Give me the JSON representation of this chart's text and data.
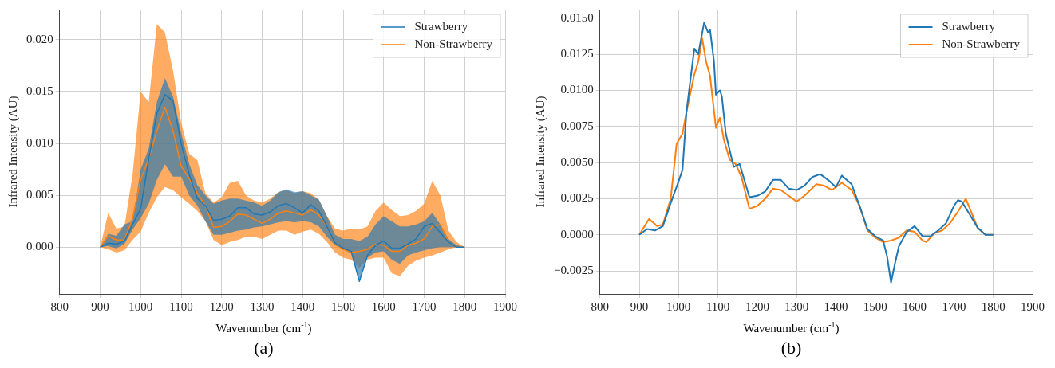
{
  "chart_data": [
    {
      "type": "line",
      "xlabel": "Wavenumber (cm$^{-1}$)",
      "ylabel": "Infrared Intensity (AU)",
      "annotations": [
        "(a)"
      ],
      "legend": "top right",
      "grid": true,
      "xlim": [
        800,
        1900
      ],
      "xticks": [
        800,
        900,
        1000,
        1100,
        1200,
        1300,
        1400,
        1500,
        1600,
        1700,
        1800,
        1900
      ],
      "ylim": [
        -0.0045,
        0.0229
      ],
      "yticks": [
        {
          "value": 0,
          "label": "0.000"
        },
        {
          "value": 0.005,
          "label": "0.005"
        },
        {
          "value": 0.01,
          "label": "0.010"
        },
        {
          "value": 0.015,
          "label": "0.015"
        },
        {
          "value": 0.02,
          "label": "0.020"
        }
      ],
      "x": [
        900,
        920,
        940,
        960,
        980,
        1000,
        1020,
        1040,
        1060,
        1080,
        1100,
        1120,
        1140,
        1160,
        1180,
        1200,
        1220,
        1240,
        1260,
        1280,
        1300,
        1320,
        1340,
        1360,
        1380,
        1400,
        1420,
        1440,
        1460,
        1480,
        1500,
        1520,
        1540,
        1560,
        1580,
        1600,
        1620,
        1640,
        1660,
        1680,
        1700,
        1720,
        1740,
        1760,
        1780,
        1800
      ],
      "series": [
        {
          "name": "Strawberry",
          "color": "#1f77b4",
          "values": [
            0,
            0.0004,
            0.0003,
            0.0006,
            0.0022,
            0.0037,
            0.0085,
            0.0129,
            0.0147,
            0.0141,
            0.01,
            0.007,
            0.0047,
            0.004,
            0.0026,
            0.0027,
            0.003,
            0.0038,
            0.0038,
            0.0032,
            0.0031,
            0.0034,
            0.004,
            0.0042,
            0.0038,
            0.0033,
            0.0041,
            0.0035,
            0.002,
            0.0004,
            -0.0001,
            -0.0004,
            -0.0033,
            -0.0008,
            0.0002,
            0.0006,
            -0.0001,
            -0.0001,
            0.0003,
            0.0008,
            0.002,
            0.0023,
            0.0014,
            0.0005,
            0,
            0
          ],
          "lower": [
            0,
            0.0001,
            -0.0001,
            0.0003,
            0.0017,
            0.0028,
            0.0042,
            0.0065,
            0.008,
            0.0068,
            0.0068,
            0.005,
            0.004,
            0.0025,
            0.0012,
            0.0012,
            0.0014,
            0.0016,
            0.0017,
            0.0019,
            0.002,
            0.0022,
            0.0024,
            0.0025,
            0.0024,
            0.0025,
            0.0024,
            0.002,
            0.001,
            0.0002,
            -0.0002,
            -0.0006,
            -0.0033,
            -0.001,
            -0.0005,
            -0.0004,
            -0.0012,
            -0.0016,
            -0.0008,
            -0.0005,
            -0.0003,
            -0.0001,
            0,
            0,
            0,
            0
          ],
          "upper": [
            0,
            0.0013,
            0.0011,
            0.0022,
            0.0025,
            0.0075,
            0.0095,
            0.014,
            0.0163,
            0.0145,
            0.011,
            0.008,
            0.006,
            0.005,
            0.0042,
            0.0045,
            0.0047,
            0.0047,
            0.0045,
            0.0043,
            0.004,
            0.0045,
            0.0053,
            0.0056,
            0.0053,
            0.0054,
            0.005,
            0.0046,
            0.003,
            0.0012,
            0.0008,
            0.0008,
            0.0006,
            0.001,
            0.0022,
            0.003,
            0.0025,
            0.002,
            0.002,
            0.0022,
            0.0025,
            0.0033,
            0.0022,
            0.0008,
            0.0002,
            0
          ]
        },
        {
          "name": "Non-Strawberry",
          "color": "#ff7f0e",
          "values": [
            0,
            0.0011,
            0.0007,
            0.0007,
            0.0028,
            0.0065,
            0.0085,
            0.0112,
            0.0135,
            0.0112,
            0.0078,
            0.0066,
            0.0052,
            0.004,
            0.0019,
            0.002,
            0.0025,
            0.0032,
            0.0031,
            0.0027,
            0.0023,
            0.0027,
            0.0033,
            0.0035,
            0.0033,
            0.0031,
            0.0036,
            0.0031,
            0.002,
            0.0003,
            -0.0002,
            -0.0005,
            -0.0004,
            -0.0002,
            0.0003,
            0.0002,
            -0.0004,
            -0.0004,
            0.0002,
            0.0004,
            0.0008,
            0.002,
            0.0022,
            0.0005,
            0,
            0
          ],
          "lower": [
            0,
            -0.0002,
            -0.0005,
            -0.0003,
            0.0007,
            0.0015,
            0.0033,
            0.0048,
            0.0058,
            0.0055,
            0.0048,
            0.0042,
            0.0035,
            0.0025,
            0.0007,
            0.0002,
            0.0005,
            0.0007,
            0.001,
            0.001,
            0.0008,
            0.0012,
            0.0016,
            0.0016,
            0.0012,
            0.0015,
            0.0017,
            0.0013,
            0.0005,
            -0.0005,
            -0.001,
            -0.0012,
            -0.002,
            -0.0012,
            -0.001,
            -0.001,
            -0.0025,
            -0.0028,
            -0.0018,
            -0.0013,
            -0.001,
            -0.0008,
            -0.0005,
            -0.0002,
            0,
            0
          ],
          "upper": [
            0,
            0.0033,
            0.0018,
            0.002,
            0.007,
            0.015,
            0.014,
            0.0215,
            0.0207,
            0.017,
            0.012,
            0.009,
            0.0084,
            0.0052,
            0.0043,
            0.0048,
            0.0062,
            0.0064,
            0.005,
            0.0045,
            0.0043,
            0.0047,
            0.0053,
            0.0055,
            0.0052,
            0.0054,
            0.0052,
            0.0046,
            0.003,
            0.0018,
            0.0016,
            0.0018,
            0.0017,
            0.002,
            0.0035,
            0.0043,
            0.0036,
            0.003,
            0.0031,
            0.0035,
            0.0042,
            0.0064,
            0.005,
            0.0016,
            0.0005,
            0
          ]
        }
      ]
    },
    {
      "type": "line",
      "xlabel": "Wavenumber (cm$^{-1}$)",
      "ylabel": "Infrared Intensity (AU)",
      "annotations": [
        "(b)"
      ],
      "legend": "top right",
      "grid": true,
      "xlim": [
        800,
        1900
      ],
      "xticks": [
        800,
        900,
        1000,
        1100,
        1200,
        1300,
        1400,
        1500,
        1600,
        1700,
        1800,
        1900
      ],
      "ylim": [
        -0.0041,
        0.0156
      ],
      "yticks": [
        {
          "value": -0.0025,
          "label": "−0.0025"
        },
        {
          "value": 0,
          "label": "0.0000"
        },
        {
          "value": 0.0025,
          "label": "0.0025"
        },
        {
          "value": 0.005,
          "label": "0.0050"
        },
        {
          "value": 0.0075,
          "label": "0.0075"
        },
        {
          "value": 0.01,
          "label": "0.0100"
        },
        {
          "value": 0.0125,
          "label": "0.0125"
        },
        {
          "value": 0.015,
          "label": "0.0150"
        }
      ],
      "series": [
        {
          "name": "Strawberry",
          "color": "#1f77b4",
          "x": [
            900,
            920,
            940,
            960,
            980,
            1000,
            1010,
            1020,
            1040,
            1050,
            1065,
            1075,
            1080,
            1090,
            1095,
            1105,
            1110,
            1120,
            1140,
            1155,
            1165,
            1180,
            1200,
            1220,
            1240,
            1260,
            1280,
            1300,
            1320,
            1340,
            1360,
            1380,
            1400,
            1415,
            1440,
            1460,
            1480,
            1500,
            1520,
            1530,
            1540,
            1550,
            1560,
            1580,
            1600,
            1620,
            1640,
            1660,
            1680,
            1700,
            1710,
            1720,
            1740,
            1760,
            1780,
            1800
          ],
          "values": [
            0,
            0.0004,
            0.0003,
            0.0006,
            0.0022,
            0.0037,
            0.0045,
            0.0085,
            0.0129,
            0.0125,
            0.0147,
            0.014,
            0.0142,
            0.012,
            0.0097,
            0.01,
            0.0096,
            0.007,
            0.0047,
            0.0049,
            0.004,
            0.0026,
            0.0027,
            0.003,
            0.0038,
            0.0038,
            0.0032,
            0.0031,
            0.0034,
            0.004,
            0.0042,
            0.0038,
            0.0033,
            0.0041,
            0.0035,
            0.002,
            0.0004,
            -0.0001,
            -0.0004,
            -0.0015,
            -0.0033,
            -0.002,
            -0.0008,
            0.0002,
            0.0006,
            -0.0001,
            -0.0001,
            0.0003,
            0.0008,
            0.002,
            0.0024,
            0.0023,
            0.0014,
            0.0005,
            0,
            0
          ]
        },
        {
          "name": "Non-Strawberry",
          "color": "#ff7f0e",
          "x": [
            900,
            925,
            945,
            960,
            980,
            995,
            1010,
            1020,
            1040,
            1050,
            1060,
            1070,
            1080,
            1095,
            1105,
            1115,
            1130,
            1145,
            1160,
            1180,
            1200,
            1220,
            1240,
            1260,
            1280,
            1300,
            1320,
            1350,
            1370,
            1390,
            1415,
            1440,
            1460,
            1480,
            1500,
            1520,
            1540,
            1560,
            1580,
            1600,
            1620,
            1630,
            1650,
            1670,
            1690,
            1710,
            1730,
            1745,
            1760,
            1780,
            1800
          ],
          "values": [
            0,
            0.0011,
            0.0006,
            0.0007,
            0.0025,
            0.0063,
            0.007,
            0.0085,
            0.0111,
            0.012,
            0.0136,
            0.012,
            0.011,
            0.0074,
            0.0081,
            0.0066,
            0.0052,
            0.0049,
            0.004,
            0.0018,
            0.002,
            0.0025,
            0.0032,
            0.0031,
            0.0027,
            0.0023,
            0.0027,
            0.0035,
            0.0034,
            0.0031,
            0.0036,
            0.0031,
            0.002,
            0.0003,
            -0.0002,
            -0.0005,
            -0.0004,
            -0.0002,
            0.0003,
            0.0002,
            -0.0004,
            -0.0005,
            0.0001,
            0.0003,
            0.0008,
            0.0016,
            0.0025,
            0.0015,
            0.0005,
            0,
            0
          ]
        }
      ]
    }
  ]
}
